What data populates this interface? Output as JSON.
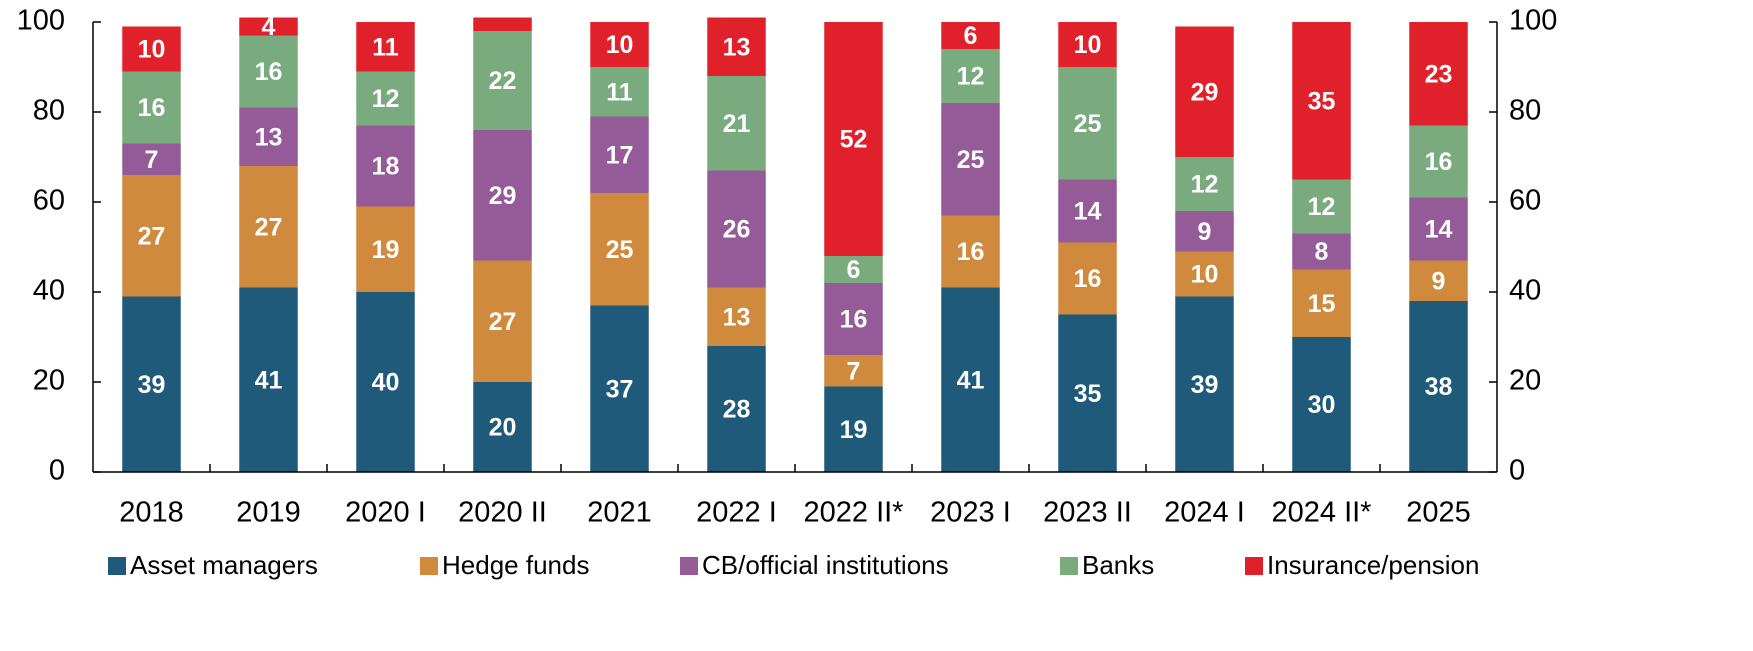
{
  "chart_data": {
    "type": "stacked_bar",
    "categories": [
      "2018",
      "2019",
      "2020 I",
      "2020 II",
      "2021",
      "2022 I",
      "2022 II*",
      "2023 I",
      "2023 II",
      "2024 I",
      "2024 II*",
      "2025"
    ],
    "series": [
      {
        "name": "Asset managers",
        "color": "#1f5a7a",
        "values": [
          39,
          41,
          40,
          20,
          37,
          28,
          19,
          41,
          35,
          39,
          30,
          38
        ]
      },
      {
        "name": "Hedge funds",
        "color": "#d08a3e",
        "values": [
          27,
          27,
          19,
          27,
          25,
          13,
          7,
          16,
          16,
          10,
          15,
          9
        ]
      },
      {
        "name": "CB/official institutions",
        "color": "#955b98",
        "values": [
          7,
          13,
          18,
          29,
          17,
          26,
          16,
          25,
          14,
          9,
          8,
          14
        ]
      },
      {
        "name": "Banks",
        "color": "#7aab7f",
        "values": [
          16,
          16,
          12,
          22,
          11,
          21,
          6,
          12,
          25,
          12,
          12,
          16
        ]
      },
      {
        "name": "Insurance/pension",
        "color": "#e0202a",
        "values": [
          10,
          4,
          11,
          3,
          10,
          13,
          52,
          6,
          10,
          29,
          35,
          23
        ]
      }
    ],
    "ylim": [
      0,
      100
    ],
    "yticks": [
      0,
      20,
      40,
      60,
      80,
      100
    ],
    "y2lim": [
      0,
      100
    ],
    "y2ticks": [
      0,
      20,
      40,
      60,
      80,
      100
    ],
    "legend": "bottom"
  }
}
